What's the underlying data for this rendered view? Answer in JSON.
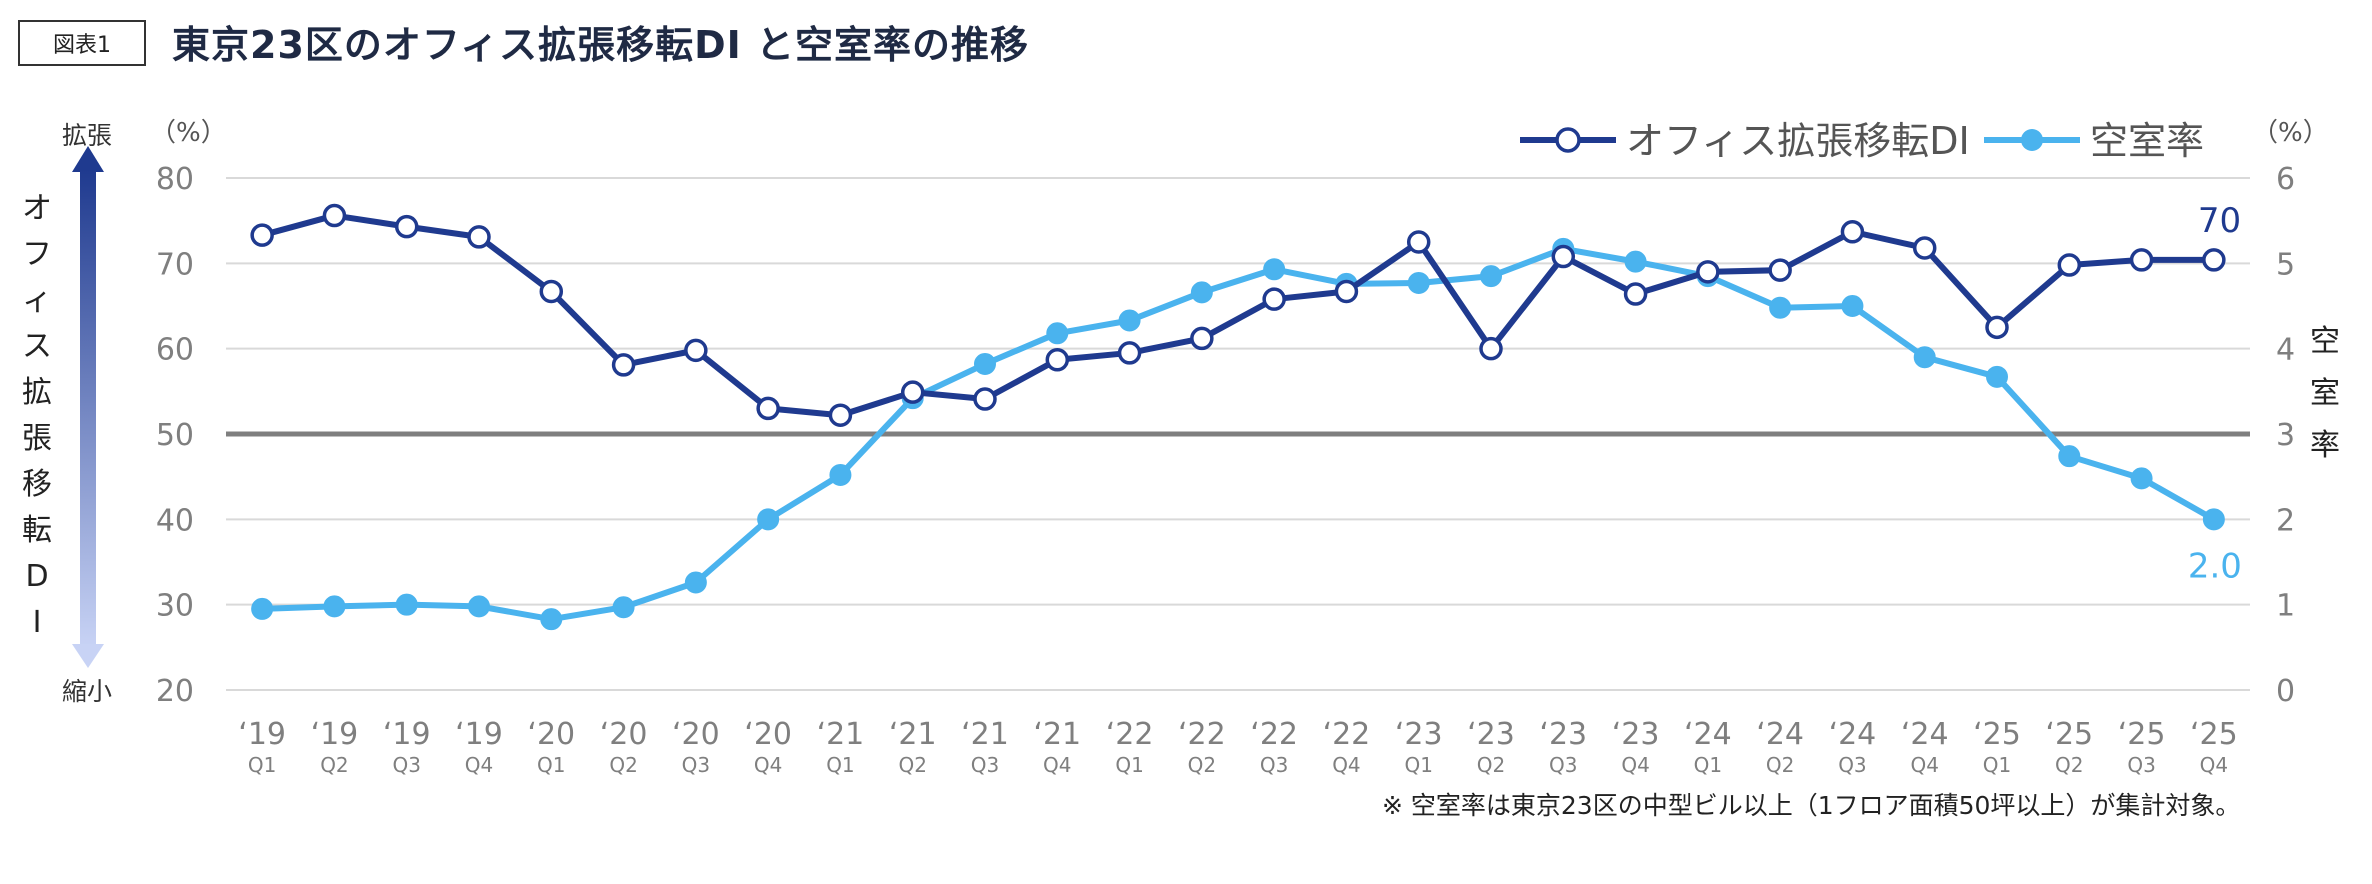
{
  "figure_label": "図表1",
  "title": "東京23区のオフィス拡張移転DI と空室率の推移",
  "left_axis": {
    "unit": "（%）",
    "top_label": "拡張",
    "bottom_label": "縮小",
    "vertical_label": [
      "オ",
      "フ",
      "ィ",
      "ス",
      "拡",
      "張",
      "移",
      "転",
      "D",
      "I"
    ]
  },
  "right_axis": {
    "unit": "（%）",
    "vertical_label": [
      "空",
      "室",
      "率"
    ]
  },
  "footnote": "※ 空室率は東京23区の中型ビル以上（1フロア面積50坪以上）が集計対象。",
  "colors": {
    "di": "#1f3a8f",
    "vacancy": "#4ab3ee",
    "baseline": "#7f7f7f",
    "grid": "#d9d9d9",
    "tick": "#7f7f7f"
  },
  "chart_data": {
    "type": "line",
    "categories_year": [
      "‘19",
      "‘19",
      "‘19",
      "‘19",
      "‘20",
      "‘20",
      "‘20",
      "‘20",
      "‘21",
      "‘21",
      "‘21",
      "‘21",
      "‘22",
      "‘22",
      "‘22",
      "‘22",
      "‘23",
      "‘23",
      "‘23",
      "‘23",
      "‘24",
      "‘24",
      "‘24",
      "‘24",
      "‘25",
      "‘25",
      "‘25",
      "‘25"
    ],
    "categories_quarter": [
      "Q1",
      "Q2",
      "Q3",
      "Q4",
      "Q1",
      "Q2",
      "Q3",
      "Q4",
      "Q1",
      "Q2",
      "Q3",
      "Q4",
      "Q1",
      "Q2",
      "Q3",
      "Q4",
      "Q1",
      "Q2",
      "Q3",
      "Q4",
      "Q1",
      "Q2",
      "Q3",
      "Q4",
      "Q1",
      "Q2",
      "Q3",
      "Q4"
    ],
    "y_left": {
      "min": 20,
      "max": 80,
      "ticks": [
        "20",
        "30",
        "40",
        "50",
        "60",
        "70",
        "80"
      ]
    },
    "y_right": {
      "min": 0,
      "max": 6,
      "ticks": [
        "0",
        "1",
        "2",
        "3",
        "4",
        "5",
        "6"
      ]
    },
    "baseline_left": 50,
    "series": [
      {
        "name": "オフィス拡張移転DI",
        "axis": "left",
        "marker": "hollow",
        "values": [
          73.3,
          75.6,
          74.3,
          73.1,
          66.7,
          58.1,
          59.8,
          53.0,
          52.2,
          54.9,
          54.1,
          58.7,
          59.5,
          61.2,
          65.8,
          66.7,
          72.5,
          60.0,
          70.8,
          66.4,
          69.0,
          69.2,
          73.7,
          71.8,
          62.5,
          69.8,
          70.4,
          70.4
        ],
        "end_label": "70"
      },
      {
        "name": "空室率",
        "axis": "right",
        "marker": "filled",
        "values": [
          0.95,
          0.98,
          1.0,
          0.98,
          0.83,
          0.97,
          1.26,
          2.0,
          2.52,
          3.42,
          3.82,
          4.18,
          4.33,
          4.66,
          4.93,
          4.76,
          4.77,
          4.85,
          5.17,
          5.02,
          4.85,
          4.48,
          4.5,
          3.9,
          3.67,
          2.74,
          2.48,
          2.0
        ],
        "end_label": "2.0"
      }
    ],
    "legend_position": "top-right",
    "grid": true
  }
}
